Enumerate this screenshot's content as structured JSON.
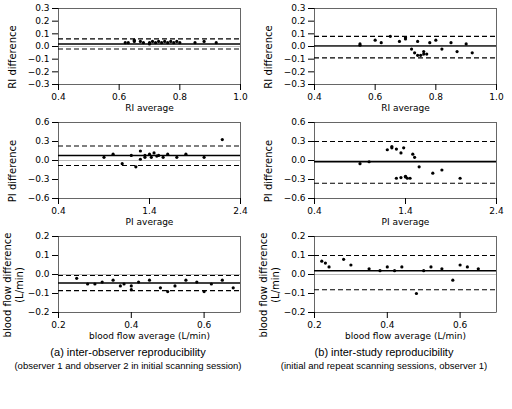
{
  "chart_data": [
    {
      "type": "scatter",
      "xlabel": "RI average",
      "ylabel": "RI difference",
      "xlim": [
        0.4,
        1.0
      ],
      "ylim": [
        -0.3,
        0.3
      ],
      "xticks": [
        0.4,
        0.6,
        0.8,
        {
          "value": 1.0,
          "label": "1.0"
        }
      ],
      "yticks": [
        -0.3,
        -0.2,
        -0.1,
        {
          "value": 0.0,
          "label": "0.0"
        },
        0.1,
        0.2,
        0.3
      ],
      "grid": false,
      "color": "#000000",
      "x": [
        0.62,
        0.63,
        0.65,
        0.67,
        0.68,
        0.7,
        0.71,
        0.72,
        0.73,
        0.74,
        0.75,
        0.76,
        0.77,
        0.78,
        0.79,
        0.8,
        0.85,
        0.88,
        0.92,
        0.65,
        0.7
      ],
      "values": [
        0.03,
        0.03,
        0.04,
        0.04,
        0.03,
        0.03,
        0.04,
        0.03,
        0.04,
        0.03,
        0.04,
        0.03,
        0.04,
        0.03,
        0.04,
        0.03,
        0.03,
        0.04,
        0.03,
        0.05,
        0.02
      ],
      "lines": [
        {
          "value": 0.0,
          "color": "#aaaaaa",
          "line_style": "solid"
        },
        {
          "value": 0.02,
          "color": "#000000",
          "line_style": "solid"
        },
        {
          "value": 0.06,
          "color": "#000000",
          "line_style": "dashed"
        },
        {
          "value": -0.02,
          "color": "#000000",
          "line_style": "dashed"
        }
      ]
    },
    {
      "type": "scatter",
      "xlabel": "PI average",
      "ylabel": "PI difference",
      "xlim": [
        0.4,
        2.4
      ],
      "ylim": [
        -0.6,
        0.6
      ],
      "xticks": [
        0.4,
        1.4,
        2.4
      ],
      "yticks": [
        -0.6,
        -0.3,
        {
          "value": 0.0,
          "label": "0.0"
        },
        0.3,
        0.6
      ],
      "grid": false,
      "color": "#000000",
      "x": [
        0.9,
        1.0,
        1.1,
        1.2,
        1.3,
        1.35,
        1.4,
        1.42,
        1.45,
        1.48,
        1.5,
        1.55,
        1.6,
        1.7,
        1.8,
        2.0,
        2.2,
        1.25,
        1.3,
        1.35
      ],
      "values": [
        0.05,
        0.1,
        -0.05,
        0.08,
        0.15,
        0.08,
        0.1,
        0.05,
        0.12,
        0.07,
        0.08,
        0.05,
        0.1,
        0.05,
        0.1,
        0.05,
        0.33,
        -0.1,
        0.02,
        0.05
      ],
      "lines": [
        {
          "value": 0.0,
          "color": "#aaaaaa",
          "line_style": "solid"
        },
        {
          "value": 0.08,
          "color": "#000000",
          "line_style": "solid"
        },
        {
          "value": 0.23,
          "color": "#000000",
          "line_style": "dashed"
        },
        {
          "value": -0.08,
          "color": "#000000",
          "line_style": "dashed"
        }
      ]
    },
    {
      "type": "scatter",
      "xlabel": "blood flow average (L/min)",
      "ylabel": "blood flow difference\n(L/min)",
      "xlim": [
        0.2,
        0.7
      ],
      "ylim": [
        -0.2,
        0.2
      ],
      "xticks": [
        0.2,
        0.4,
        0.6
      ],
      "yticks": [
        -0.2,
        -0.1,
        {
          "value": 0.0,
          "label": "0.0"
        },
        0.1,
        0.2
      ],
      "grid": false,
      "color": "#000000",
      "x": [
        0.25,
        0.28,
        0.32,
        0.35,
        0.37,
        0.38,
        0.4,
        0.42,
        0.45,
        0.48,
        0.5,
        0.52,
        0.55,
        0.58,
        0.6,
        0.62,
        0.65,
        0.68,
        0.3,
        0.4
      ],
      "values": [
        -0.02,
        -0.05,
        -0.04,
        -0.03,
        -0.06,
        -0.05,
        -0.08,
        -0.04,
        -0.03,
        -0.07,
        -0.09,
        -0.06,
        -0.03,
        -0.04,
        -0.09,
        -0.05,
        -0.03,
        -0.07,
        -0.05,
        -0.06
      ],
      "lines": [
        {
          "value": 0.0,
          "color": "#aaaaaa",
          "line_style": "solid"
        },
        {
          "value": -0.045,
          "color": "#000000",
          "line_style": "solid"
        },
        {
          "value": -0.005,
          "color": "#000000",
          "line_style": "dashed"
        },
        {
          "value": -0.085,
          "color": "#000000",
          "line_style": "dashed"
        }
      ]
    },
    {
      "type": "scatter",
      "xlabel": "RI average",
      "ylabel": "RI difference",
      "xlim": [
        0.4,
        1.0
      ],
      "ylim": [
        -0.3,
        0.3
      ],
      "xticks": [
        0.4,
        0.6,
        0.8,
        {
          "value": 1.0,
          "label": "1.0"
        }
      ],
      "yticks": [
        -0.3,
        -0.2,
        -0.1,
        {
          "value": 0.0,
          "label": "0.0"
        },
        0.1,
        0.2,
        0.3
      ],
      "grid": false,
      "color": "#000000",
      "x": [
        0.55,
        0.6,
        0.65,
        0.68,
        0.7,
        0.72,
        0.73,
        0.74,
        0.75,
        0.76,
        0.77,
        0.78,
        0.8,
        0.82,
        0.85,
        0.87,
        0.9,
        0.92,
        0.55,
        0.62,
        0.7,
        0.74,
        0.76
      ],
      "values": [
        0.02,
        0.05,
        0.08,
        0.04,
        0.06,
        -0.02,
        -0.05,
        -0.07,
        -0.07,
        -0.04,
        -0.06,
        0.03,
        0.05,
        -0.02,
        0.03,
        -0.04,
        0.02,
        -0.05,
        0.01,
        0.03,
        0.07,
        0.04,
        -0.06
      ],
      "lines": [
        {
          "value": 0.0,
          "color": "#aaaaaa",
          "line_style": "solid"
        },
        {
          "value": 0.005,
          "color": "#000000",
          "line_style": "solid"
        },
        {
          "value": 0.08,
          "color": "#000000",
          "line_style": "dashed"
        },
        {
          "value": -0.09,
          "color": "#000000",
          "line_style": "dashed"
        }
      ]
    },
    {
      "type": "scatter",
      "xlabel": "PI average",
      "ylabel": "PI difference",
      "xlim": [
        0.4,
        2.4
      ],
      "ylim": [
        -0.6,
        0.6
      ],
      "xticks": [
        0.4,
        1.4,
        2.4
      ],
      "yticks": [
        -0.6,
        -0.3,
        {
          "value": 0.0,
          "label": "0.0"
        },
        0.3,
        0.6
      ],
      "grid": false,
      "color": "#000000",
      "x": [
        0.9,
        1.0,
        1.2,
        1.25,
        1.3,
        1.35,
        1.38,
        1.4,
        1.42,
        1.45,
        1.48,
        1.5,
        1.55,
        1.7,
        1.8,
        2.0,
        1.25,
        1.3,
        1.35,
        1.4
      ],
      "values": [
        -0.05,
        -0.02,
        0.17,
        0.2,
        0.18,
        0.12,
        0.2,
        -0.25,
        -0.28,
        -0.28,
        0.1,
        0.05,
        -0.1,
        -0.2,
        -0.15,
        -0.28,
        0.22,
        -0.28,
        -0.27,
        -0.26
      ],
      "lines": [
        {
          "value": 0.0,
          "color": "#aaaaaa",
          "line_style": "solid"
        },
        {
          "value": -0.02,
          "color": "#000000",
          "line_style": "solid"
        },
        {
          "value": 0.3,
          "color": "#000000",
          "line_style": "dashed"
        },
        {
          "value": -0.36,
          "color": "#000000",
          "line_style": "dashed"
        }
      ]
    },
    {
      "type": "scatter",
      "xlabel": "blood flow average (L/min)",
      "ylabel": "blood flow difference\n(L/min)",
      "xlim": [
        0.2,
        0.7
      ],
      "ylim": [
        -0.2,
        0.2
      ],
      "xticks": [
        0.2,
        0.4,
        0.6
      ],
      "yticks": [
        -0.2,
        -0.1,
        {
          "value": 0.0,
          "label": "0.0"
        },
        0.1,
        0.2
      ],
      "grid": false,
      "color": "#000000",
      "x": [
        0.22,
        0.23,
        0.24,
        0.28,
        0.3,
        0.35,
        0.38,
        0.4,
        0.42,
        0.44,
        0.48,
        0.5,
        0.52,
        0.55,
        0.58,
        0.6,
        0.62,
        0.65
      ],
      "values": [
        0.07,
        0.06,
        0.04,
        0.08,
        0.05,
        0.03,
        0.02,
        0.04,
        0.02,
        0.04,
        -0.1,
        0.02,
        0.04,
        0.03,
        -0.03,
        0.05,
        0.04,
        0.03
      ],
      "lines": [
        {
          "value": 0.0,
          "color": "#aaaaaa",
          "line_style": "solid"
        },
        {
          "value": 0.02,
          "color": "#000000",
          "line_style": "solid"
        },
        {
          "value": 0.1,
          "color": "#000000",
          "line_style": "dashed"
        },
        {
          "value": -0.08,
          "color": "#000000",
          "line_style": "dashed"
        }
      ]
    }
  ],
  "captions": [
    "(a)  inter-observer reproducibility",
    "(b) inter-study reproducibility"
  ],
  "subcaptions": [
    "(observer 1 and observer 2 in initial scanning session)",
    "(initial and repeat scanning sessions, observer 1)"
  ]
}
